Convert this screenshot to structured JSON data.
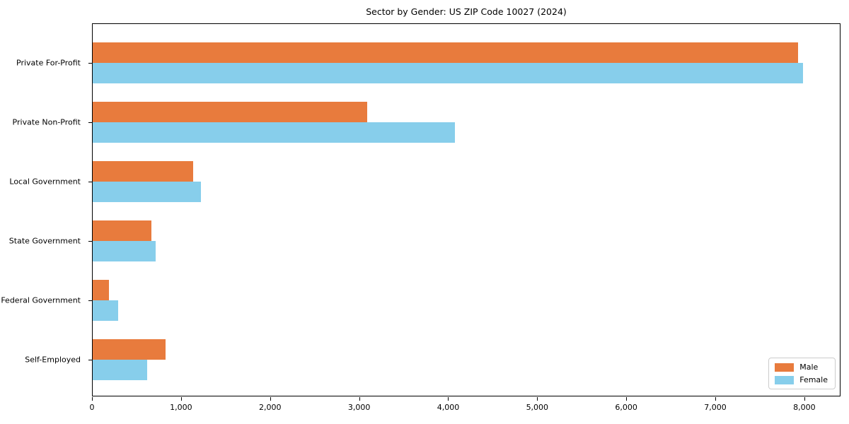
{
  "chart_data": {
    "type": "bar",
    "orientation": "horizontal",
    "title": "Sector by Gender: US ZIP Code 10027 (2024)",
    "categories": [
      "Private For-Profit",
      "Private Non-Profit",
      "Local Government",
      "State Government",
      "Federal Government",
      "Self-Employed"
    ],
    "series": [
      {
        "name": "Male",
        "color": "#E87B3D",
        "values": [
          7920,
          3080,
          1130,
          660,
          185,
          815
        ]
      },
      {
        "name": "Female",
        "color": "#87CEEB",
        "values": [
          7980,
          4070,
          1215,
          705,
          285,
          610
        ]
      }
    ],
    "xlabel": "",
    "ylabel": "",
    "xlim": [
      0,
      8390
    ],
    "xticks": [
      0,
      1000,
      2000,
      3000,
      4000,
      5000,
      6000,
      7000,
      8000
    ],
    "xtick_labels": [
      "0",
      "1,000",
      "2,000",
      "3,000",
      "4,000",
      "5,000",
      "6,000",
      "7,000",
      "8,000"
    ],
    "grid": false,
    "legend": {
      "position": "lower right",
      "entries": [
        "Male",
        "Female"
      ]
    }
  }
}
